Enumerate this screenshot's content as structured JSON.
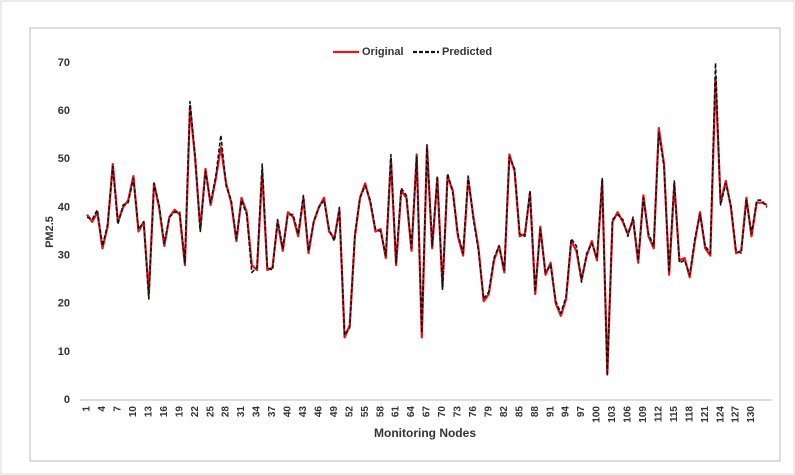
{
  "chart_data": {
    "type": "line",
    "legend": "top",
    "x_label": "Monitoring Nodes",
    "y_label": "PM2.5",
    "ylim": [
      0,
      70
    ],
    "yticks": [
      0,
      10,
      20,
      30,
      40,
      50,
      60,
      70
    ],
    "grid": false,
    "categories": [
      1,
      null,
      null,
      4,
      null,
      null,
      7,
      null,
      null,
      10,
      null,
      null,
      13,
      null,
      null,
      16,
      null,
      null,
      19,
      null,
      null,
      22,
      null,
      null,
      25,
      null,
      null,
      28,
      null,
      null,
      31,
      null,
      null,
      34,
      null,
      null,
      37,
      null,
      null,
      40,
      null,
      null,
      43,
      null,
      null,
      46,
      null,
      null,
      49,
      null,
      null,
      52,
      null,
      null,
      55,
      null,
      null,
      58,
      null,
      null,
      61,
      null,
      null,
      64,
      null,
      null,
      67,
      null,
      null,
      70,
      null,
      null,
      73,
      null,
      null,
      76,
      null,
      null,
      79,
      null,
      null,
      82,
      null,
      null,
      85,
      null,
      null,
      88,
      null,
      null,
      91,
      null,
      null,
      94,
      null,
      null,
      97,
      null,
      null,
      100,
      null,
      null,
      103,
      null,
      null,
      106,
      null,
      null,
      109,
      null,
      null,
      112,
      null,
      null,
      115,
      null,
      null,
      118,
      null,
      null,
      121,
      null,
      null,
      124,
      null,
      null,
      127,
      null,
      null,
      130,
      null,
      null,
      null
    ],
    "series": [
      {
        "name": "Original",
        "color": "#e8141e",
        "dash": false,
        "values": [
          38.5,
          37,
          39,
          31.5,
          36,
          49,
          37,
          40,
          41.5,
          46.5,
          35,
          37,
          22,
          45,
          40,
          32,
          38,
          39.5,
          38.5,
          28,
          61,
          50,
          35.5,
          48,
          40.5,
          46,
          52.5,
          45,
          41,
          33,
          42,
          39,
          28,
          27,
          47.5,
          27,
          27.5,
          37,
          31,
          39,
          38,
          34,
          42,
          30.5,
          37,
          40,
          42,
          35,
          33.5,
          39.5,
          13,
          15.5,
          34,
          42,
          45,
          41,
          35,
          35.5,
          29.5,
          50,
          28,
          43.5,
          42,
          31,
          51,
          13,
          52.5,
          31.5,
          46,
          23.5,
          46.5,
          43.5,
          34,
          30,
          46,
          38,
          31.5,
          20.5,
          22,
          29,
          32,
          26.5,
          51,
          47.5,
          34,
          34.5,
          43,
          22,
          36,
          26,
          28.5,
          20,
          17.5,
          21,
          33,
          31,
          25,
          30,
          33,
          29,
          45.5,
          5.5,
          37,
          39,
          37,
          34.5,
          37.5,
          28.5,
          42.5,
          34,
          31.5,
          56.5,
          49,
          26,
          45,
          29,
          29.5,
          25.5,
          33,
          39,
          31.5,
          30,
          67,
          41,
          45.5,
          40,
          30.5,
          31,
          42,
          34,
          41,
          41,
          40.5
        ]
      },
      {
        "name": "Predicted",
        "color": "#111111",
        "dash": true,
        "values": [
          38,
          37.5,
          39.5,
          32,
          36.5,
          48.5,
          36.5,
          40.5,
          41,
          46,
          35.5,
          37,
          21,
          45,
          40.5,
          32.5,
          38,
          39,
          39,
          28.5,
          62,
          50.5,
          35,
          47.5,
          41,
          46.5,
          55,
          44.5,
          41.5,
          33.5,
          41.5,
          38.5,
          26.5,
          27.5,
          49,
          27.5,
          27,
          37.5,
          31.5,
          38.5,
          38.5,
          34.5,
          42.5,
          31,
          37,
          40,
          41.5,
          35.5,
          33,
          40,
          13.5,
          15,
          34.5,
          42,
          44.5,
          41.5,
          35.5,
          35,
          30,
          51,
          28.5,
          44,
          42.5,
          31.5,
          50.5,
          14,
          53,
          32,
          46.5,
          23,
          47,
          43,
          34.5,
          30.5,
          46.5,
          37.5,
          31,
          21,
          22.5,
          29.5,
          32,
          27,
          50.5,
          48,
          34.5,
          34,
          43.5,
          22.5,
          35.5,
          26.5,
          28,
          20.5,
          18,
          21.5,
          33.5,
          32,
          24.5,
          30.5,
          32.5,
          29.5,
          46,
          5,
          37.5,
          38.5,
          37.5,
          34,
          38,
          29,
          42,
          34.5,
          32,
          55.5,
          48.5,
          26.5,
          45.5,
          28.5,
          29,
          26,
          33.5,
          38.5,
          32,
          30.5,
          70,
          40.5,
          45,
          40.5,
          31,
          30.5,
          41.5,
          34.5,
          41.5,
          41.5,
          40
        ]
      }
    ]
  }
}
